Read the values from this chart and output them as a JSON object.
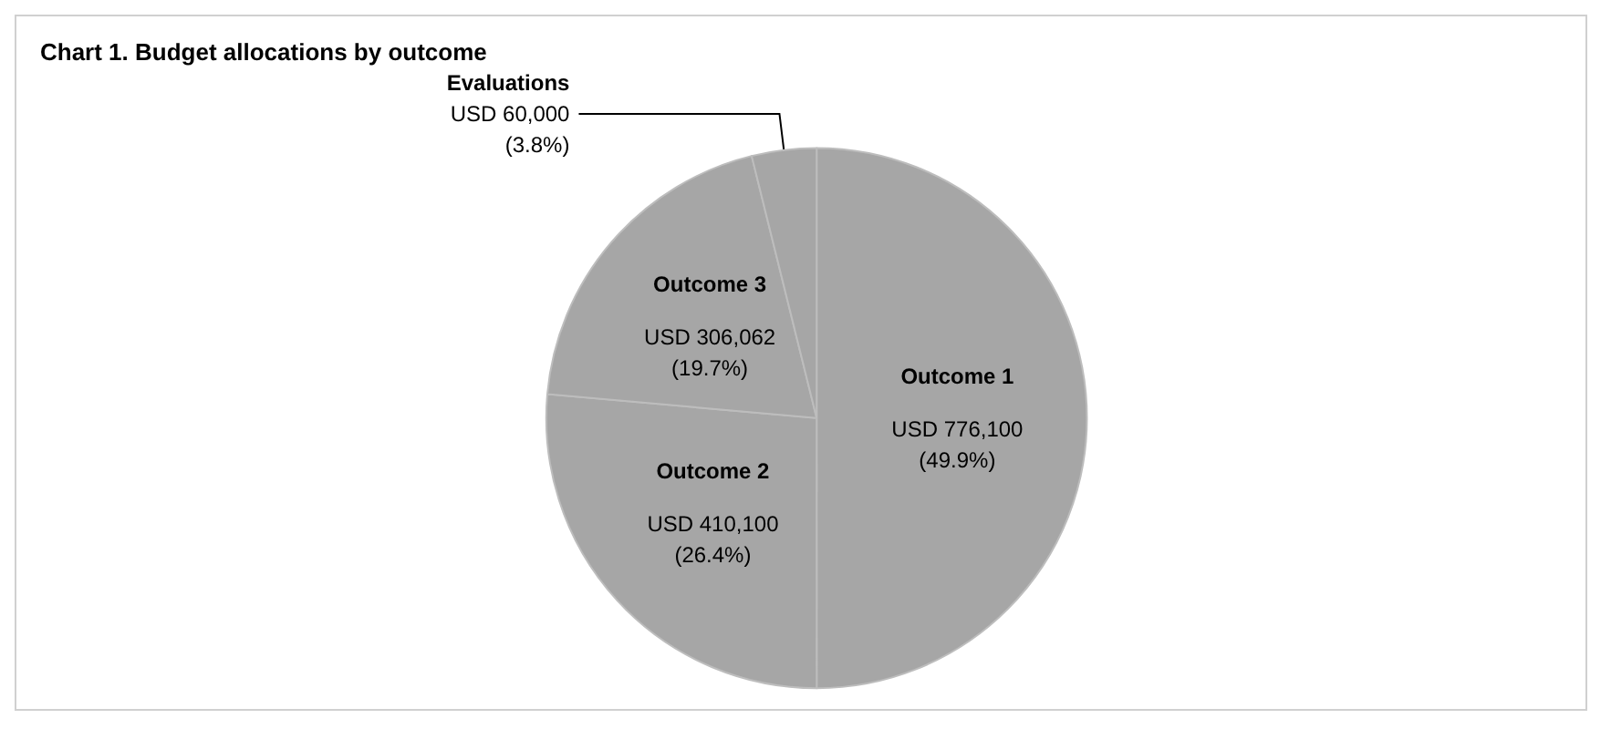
{
  "chart_data": {
    "type": "pie",
    "title": "Chart 1. Budget allocations by outcome",
    "categories": [
      "Outcome 1",
      "Outcome 2",
      "Outcome 3",
      "Evaluations"
    ],
    "values": [
      776100,
      410100,
      306062,
      60000
    ],
    "colors": [
      "#a6a6a6",
      "#a6a6a6",
      "#a6a6a6",
      "#a6a6a6"
    ],
    "value_labels": [
      "USD 776,100\n(49.9%)",
      "USD 410,100\n(26.4%)",
      "USD 306,062\n(19.7%)",
      "USD 60,000\n(3.8%)"
    ],
    "legend": false
  }
}
